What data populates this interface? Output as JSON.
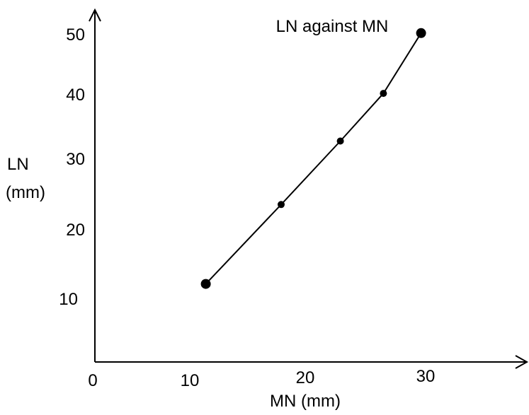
{
  "chart_data": {
    "type": "line",
    "title": "LN against MN",
    "xlabel": "MN (mm)",
    "ylabel": [
      "LN",
      "(mm)"
    ],
    "x_ticks": [
      "0",
      "10",
      "20",
      "30"
    ],
    "y_ticks": [
      "10",
      "20",
      "30",
      "40",
      "50"
    ],
    "x": [
      10.5,
      17.5,
      23,
      27,
      30.5
    ],
    "y": [
      12.5,
      25,
      35,
      42.5,
      52
    ],
    "grid": false,
    "colors": {
      "line": "#000000",
      "points": "#000000",
      "axes": "#000000"
    }
  }
}
